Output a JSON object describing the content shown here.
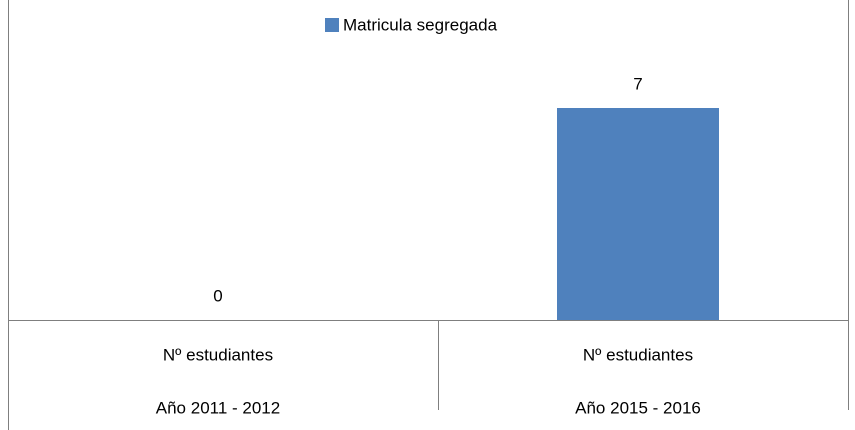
{
  "chart_data": {
    "type": "bar",
    "categories": [
      [
        "Nº estudiantes",
        "Año 2011 - 2012"
      ],
      [
        "Nº estudiantes",
        "Año 2015 - 2016"
      ]
    ],
    "series": [
      {
        "name": "Matricula segregada",
        "color": "#4f81bd",
        "values": [
          0,
          7
        ]
      }
    ],
    "data_labels": true,
    "legend": "top"
  }
}
